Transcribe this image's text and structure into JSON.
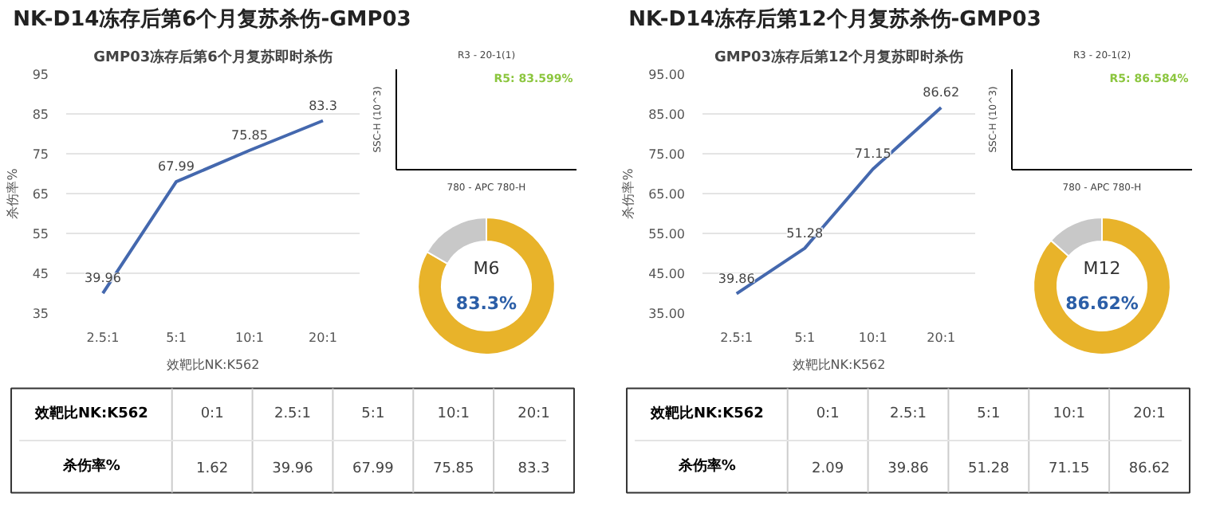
{
  "chart_data": [
    {
      "type": "line",
      "title": "NK-D14冻存后第6个月复苏杀伤-GMP03",
      "subtitle": "GMP03冻存后第6个月复苏即时杀伤",
      "xlabel": "效靶比NK:K562",
      "ylabel": "杀伤率%",
      "categories": [
        "2.5:1",
        "5:1",
        "10:1",
        "20:1"
      ],
      "series": [
        {
          "color": "#4468ae",
          "values": [
            39.96,
            67.99,
            75.85,
            83.3
          ]
        }
      ],
      "ylim": [
        35,
        95
      ],
      "yticks": [
        35,
        45,
        55,
        65,
        75,
        85,
        95
      ],
      "grid": "y",
      "data_labels": true
    },
    {
      "type": "other",
      "title": "R3 - 20-1(1)",
      "xlabel": "780 - APC 780-H",
      "ylabel": "SSC-H (10^3)",
      "annotations": [
        "R5: 83.599%"
      ]
    },
    {
      "type": "donut",
      "categories": [
        null,
        null
      ],
      "values": [
        83.3,
        16.7
      ],
      "colors": [
        "#e8b32a",
        "#c8c8c8"
      ],
      "annotations": [
        "M6",
        "83.3%"
      ]
    },
    {
      "type": "other",
      "xlabel": "效靶比NK:K562",
      "ylabel": "杀伤率%",
      "categories": [
        "0:1",
        "2.5:1",
        "5:1",
        "10:1",
        "20:1"
      ],
      "values": [
        1.62,
        39.96,
        67.99,
        75.85,
        83.3
      ],
      "data_labels": true
    },
    {
      "type": "line",
      "title": "NK-D14冻存后第12个月复苏杀伤-GMP03",
      "subtitle": "GMP03冻存后第12个月复苏即时杀伤",
      "xlabel": "效靶比NK:K562",
      "ylabel": "杀伤率%",
      "categories": [
        "2.5:1",
        "5:1",
        "10:1",
        "20:1"
      ],
      "series": [
        {
          "color": "#4468ae",
          "values": [
            39.86,
            51.28,
            71.15,
            86.62
          ]
        }
      ],
      "ylim": [
        35,
        95
      ],
      "yticks": [
        {
          "value": 35,
          "label": "35.00"
        },
        {
          "value": 45,
          "label": "45.00"
        },
        {
          "value": 55,
          "label": "55.00"
        },
        {
          "value": 65,
          "label": "65.00"
        },
        {
          "value": 75,
          "label": "75.00"
        },
        {
          "value": 85,
          "label": "85.00"
        },
        {
          "value": 95,
          "label": "95.00"
        }
      ],
      "grid": "y",
      "data_labels": true
    },
    {
      "type": "other",
      "title": "R3 - 20-1(2)",
      "xlabel": "780 - APC 780-H",
      "ylabel": "SSC-H (10^3)",
      "annotations": [
        "R5: 86.584%"
      ]
    },
    {
      "type": "donut",
      "categories": [
        null,
        null
      ],
      "values": [
        86.62,
        13.38
      ],
      "colors": [
        "#e8b32a",
        "#c8c8c8"
      ],
      "annotations": [
        "M12",
        "86.62%"
      ]
    },
    {
      "type": "other",
      "xlabel": "效靶比NK:K562",
      "ylabel": "杀伤率%",
      "categories": [
        "0:1",
        "2.5:1",
        "5:1",
        "10:1",
        "20:1"
      ],
      "values": [
        2.09,
        39.86,
        51.28,
        71.15,
        86.62
      ],
      "data_labels": true
    }
  ]
}
